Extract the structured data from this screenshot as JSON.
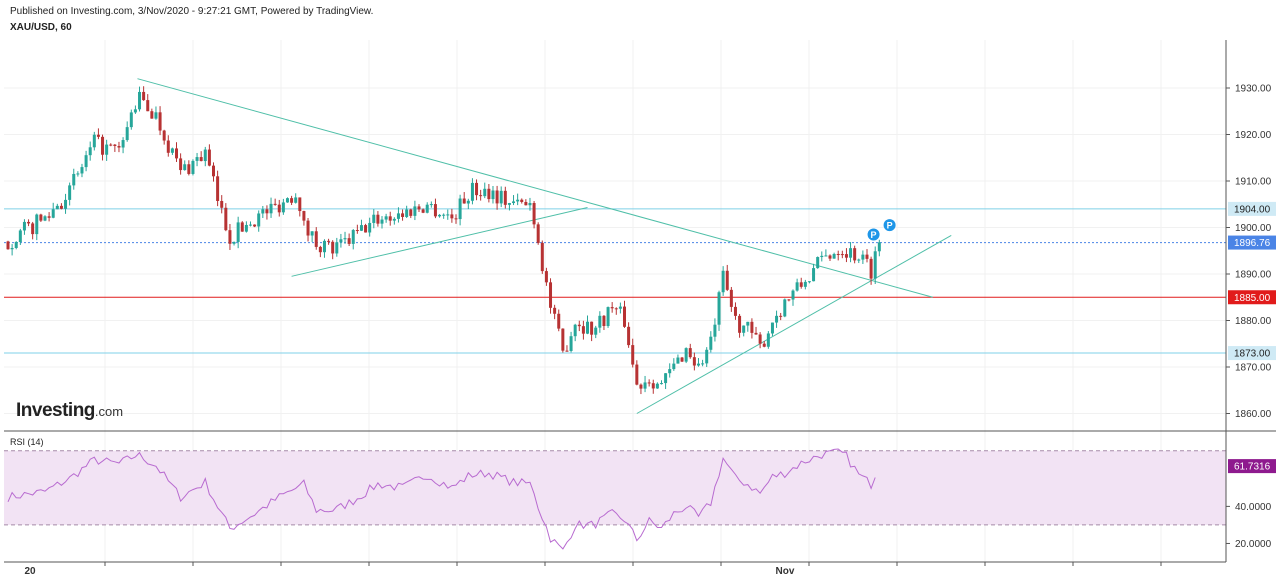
{
  "header": {
    "published": "Published on Investing.com, 3/Nov/2020 - 9:27:21 GMT, Powered by TradingView.",
    "symbol": "XAU/USD, 60"
  },
  "logo": {
    "main": "Investing",
    "suffix": ".com"
  },
  "colors": {
    "up": "#26a69a",
    "down": "#b73233",
    "trend": "#4fbfa8",
    "level": "#7fd0e8",
    "red_level": "#e11b1b",
    "rsi": "#b86bd0",
    "rsi_band": "#f2e3f4",
    "current": "#4a84e6",
    "marker": "#1e96e8"
  },
  "chart_data": {
    "type": "candlestick",
    "x_ticks": [
      "20",
      "Nov"
    ],
    "y_ticks": [
      "1930.00",
      "1920.00",
      "1910.00",
      "1900.00",
      "1890.00",
      "1880.00",
      "1870.00",
      "1860.00"
    ],
    "price_labels": [
      {
        "label": "1904.00",
        "value": 1904.0,
        "kind": "level"
      },
      {
        "label": "1896.76",
        "value": 1896.76,
        "kind": "current"
      },
      {
        "label": "1885.00",
        "value": 1885.0,
        "kind": "red"
      },
      {
        "label": "1873.00",
        "value": 1873.0,
        "kind": "level"
      }
    ],
    "markers": [
      "P",
      "P"
    ],
    "trend_lines": [
      {
        "from": [
          10.5,
          1932
        ],
        "to": [
          75,
          1885
        ]
      },
      {
        "from": [
          23,
          1889.5
        ],
        "to": [
          47,
          1904.3
        ]
      },
      {
        "from": [
          51,
          1860
        ],
        "to": [
          76.5,
          1898.3
        ]
      }
    ],
    "anchors": [
      [
        0,
        1897
      ],
      [
        3,
        1902
      ],
      [
        5,
        1908
      ],
      [
        7,
        1918
      ],
      [
        9,
        1916
      ],
      [
        10.5,
        1928
      ],
      [
        12,
        1924
      ],
      [
        14,
        1912
      ],
      [
        16,
        1916
      ],
      [
        17,
        1906
      ],
      [
        18,
        1898
      ],
      [
        20,
        1902
      ],
      [
        22,
        1905
      ],
      [
        23.5,
        1908
      ],
      [
        24,
        1900
      ],
      [
        25,
        1897
      ],
      [
        26.5,
        1895
      ],
      [
        28,
        1898
      ],
      [
        30,
        1902
      ],
      [
        32,
        1903
      ],
      [
        34,
        1905
      ],
      [
        36,
        1902
      ],
      [
        37.5,
        1908
      ],
      [
        39,
        1908
      ],
      [
        41,
        1905
      ],
      [
        42.5,
        1905
      ],
      [
        43,
        1897
      ],
      [
        44,
        1883
      ],
      [
        45,
        1873
      ],
      [
        46,
        1880
      ],
      [
        47.5,
        1878
      ],
      [
        49,
        1883
      ],
      [
        50,
        1880
      ],
      [
        51,
        1866
      ],
      [
        52,
        1868
      ],
      [
        53,
        1866
      ],
      [
        54,
        1870
      ],
      [
        55,
        1874
      ],
      [
        56,
        1870
      ],
      [
        57,
        1875
      ],
      [
        58,
        1889
      ],
      [
        59,
        1880
      ],
      [
        60,
        1878
      ],
      [
        61,
        1874
      ],
      [
        62,
        1880
      ],
      [
        63,
        1884
      ],
      [
        64.5,
        1888
      ],
      [
        66,
        1893
      ],
      [
        67.5,
        1896
      ],
      [
        68,
        1895
      ],
      [
        69,
        1894
      ],
      [
        70,
        1891
      ],
      [
        70.6,
        1896.8
      ]
    ],
    "rsi": {
      "label": "RSI (14)",
      "value_label": "61.7316",
      "y_ticks": [
        "40.0000",
        "20.0000"
      ],
      "upper": 70,
      "lower": 30,
      "ylim": [
        10,
        71.5
      ],
      "anchors": [
        [
          0,
          45
        ],
        [
          3,
          48
        ],
        [
          5,
          55
        ],
        [
          7,
          65
        ],
        [
          9,
          63
        ],
        [
          10.5,
          68
        ],
        [
          12,
          62
        ],
        [
          14,
          45
        ],
        [
          16,
          53
        ],
        [
          17,
          40
        ],
        [
          18,
          28
        ],
        [
          20,
          36
        ],
        [
          22,
          45
        ],
        [
          24,
          52
        ],
        [
          25,
          38
        ],
        [
          26.5,
          38
        ],
        [
          28,
          43
        ],
        [
          30,
          52
        ],
        [
          32,
          50
        ],
        [
          34,
          57
        ],
        [
          36,
          50
        ],
        [
          37.5,
          57
        ],
        [
          39,
          58
        ],
        [
          41,
          53
        ],
        [
          42.5,
          52
        ],
        [
          43,
          40
        ],
        [
          44,
          23
        ],
        [
          45,
          16
        ],
        [
          46,
          30
        ],
        [
          47.5,
          30
        ],
        [
          49,
          36
        ],
        [
          50,
          33
        ],
        [
          51,
          22
        ],
        [
          52,
          32
        ],
        [
          53,
          28
        ],
        [
          54,
          36
        ],
        [
          55,
          40
        ],
        [
          56,
          34
        ],
        [
          57,
          42
        ],
        [
          58,
          66
        ],
        [
          59,
          55
        ],
        [
          60,
          52
        ],
        [
          61,
          47
        ],
        [
          62,
          56
        ],
        [
          63,
          58
        ],
        [
          64.5,
          64
        ],
        [
          66,
          68
        ],
        [
          67.5,
          69
        ],
        [
          68,
          67
        ],
        [
          69,
          57
        ],
        [
          70,
          52
        ],
        [
          70.6,
          61.73
        ]
      ]
    }
  }
}
